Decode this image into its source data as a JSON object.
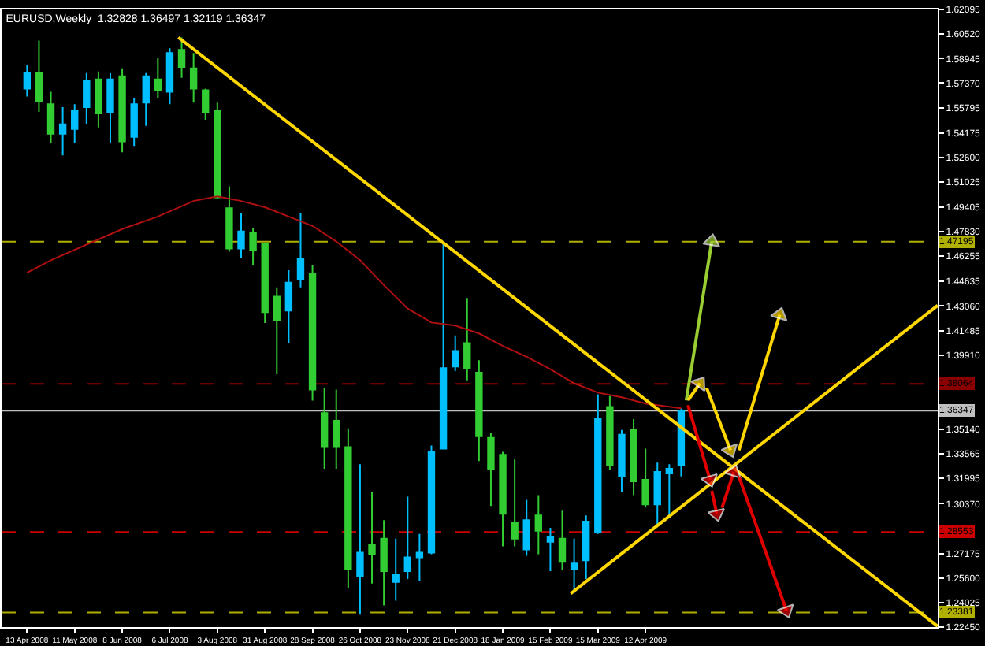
{
  "chart_data": {
    "type": "candlestick",
    "title": "EURUSD,Weekly  1.32828 1.36497 1.32119 1.36347",
    "x": [
      "2008-04-13",
      "2008-04-20",
      "2008-04-27",
      "2008-05-04",
      "2008-05-11",
      "2008-05-18",
      "2008-05-25",
      "2008-06-01",
      "2008-06-08",
      "2008-06-15",
      "2008-06-22",
      "2008-06-29",
      "2008-07-06",
      "2008-07-13",
      "2008-07-20",
      "2008-07-27",
      "2008-08-03",
      "2008-08-10",
      "2008-08-17",
      "2008-08-24",
      "2008-08-31",
      "2008-09-07",
      "2008-09-14",
      "2008-09-21",
      "2008-09-28",
      "2008-10-05",
      "2008-10-12",
      "2008-10-19",
      "2008-10-26",
      "2008-11-02",
      "2008-11-09",
      "2008-11-16",
      "2008-11-23",
      "2008-11-30",
      "2008-12-07",
      "2008-12-14",
      "2008-12-21",
      "2008-12-28",
      "2009-01-04",
      "2009-01-11",
      "2009-01-18",
      "2009-01-25",
      "2009-02-01",
      "2009-02-08",
      "2009-02-15",
      "2009-02-22",
      "2009-03-01",
      "2009-03-08",
      "2009-03-15",
      "2009-03-22",
      "2009-03-29",
      "2009-04-05",
      "2009-04-12",
      "2009-04-19",
      "2009-04-26",
      "2009-05-03"
    ],
    "ohlc": [
      [
        1.5701,
        1.5851,
        1.5651,
        1.5801
      ],
      [
        1.5801,
        1.601,
        1.5552,
        1.5621
      ],
      [
        1.5602,
        1.5681,
        1.5353,
        1.5412
      ],
      [
        1.5412,
        1.5582,
        1.5273,
        1.5472
      ],
      [
        1.5442,
        1.5602,
        1.5353,
        1.5562
      ],
      [
        1.5582,
        1.5801,
        1.5472,
        1.5751
      ],
      [
        1.5761,
        1.5811,
        1.5452,
        1.5542
      ],
      [
        1.5552,
        1.5801,
        1.5353,
        1.5761
      ],
      [
        1.5781,
        1.5831,
        1.5293,
        1.5362
      ],
      [
        1.5392,
        1.5641,
        1.5333,
        1.5602
      ],
      [
        1.5611,
        1.5801,
        1.5462,
        1.5781
      ],
      [
        1.5761,
        1.59,
        1.5641,
        1.5691
      ],
      [
        1.5681,
        1.596,
        1.5602,
        1.593
      ],
      [
        1.595,
        1.603,
        1.5771,
        1.5841
      ],
      [
        1.5831,
        1.593,
        1.5611,
        1.5701
      ],
      [
        1.5691,
        1.5701,
        1.5502,
        1.5552
      ],
      [
        1.5562,
        1.5611,
        1.4994,
        1.5004
      ],
      [
        1.4934,
        1.5074,
        1.4655,
        1.4675
      ],
      [
        1.4675,
        1.4904,
        1.4615,
        1.4785
      ],
      [
        1.4775,
        1.4805,
        1.4566,
        1.4665
      ],
      [
        1.4705,
        1.4705,
        1.4197,
        1.4267
      ],
      [
        1.4366,
        1.4426,
        1.3868,
        1.4217
      ],
      [
        1.4277,
        1.4536,
        1.4068,
        1.4456
      ],
      [
        1.4476,
        1.4904,
        1.4426,
        1.4606
      ],
      [
        1.4516,
        1.4566,
        1.3699,
        1.3769
      ],
      [
        1.3619,
        1.3779,
        1.3261,
        1.34
      ],
      [
        1.357,
        1.3769,
        1.3261,
        1.34
      ],
      [
        1.34,
        1.352,
        1.2494,
        1.2614
      ],
      [
        1.2574,
        1.3291,
        1.2325,
        1.2723
      ],
      [
        1.2773,
        1.3112,
        1.2524,
        1.2713
      ],
      [
        1.2813,
        1.2932,
        1.2384,
        1.2604
      ],
      [
        1.2534,
        1.2813,
        1.2414,
        1.2584
      ],
      [
        1.2604,
        1.3082,
        1.2554,
        1.2693
      ],
      [
        1.2693,
        1.2843,
        1.2544,
        1.2723
      ],
      [
        1.2723,
        1.341,
        1.2713,
        1.337
      ],
      [
        1.339,
        1.4705,
        1.339,
        1.3908
      ],
      [
        1.3918,
        1.4117,
        1.3888,
        1.4018
      ],
      [
        1.4068,
        1.4357,
        1.3829,
        1.3908
      ],
      [
        1.3878,
        1.3958,
        1.3311,
        1.347
      ],
      [
        1.346,
        1.349,
        1.3022,
        1.3261
      ],
      [
        1.3351,
        1.337,
        1.2763,
        1.2972
      ],
      [
        1.2912,
        1.3321,
        1.2763,
        1.2813
      ],
      [
        1.2743,
        1.3062,
        1.2703,
        1.2932
      ],
      [
        1.2962,
        1.3092,
        1.2713,
        1.2863
      ],
      [
        1.2793,
        1.2882,
        1.2604,
        1.2823
      ],
      [
        1.2813,
        1.2992,
        1.2614,
        1.2663
      ],
      [
        1.2614,
        1.2813,
        1.2464,
        1.2653
      ],
      [
        1.2673,
        1.2962,
        1.2554,
        1.2922
      ],
      [
        1.2853,
        1.3739,
        1.2843,
        1.358
      ],
      [
        1.3659,
        1.3729,
        1.3251,
        1.3281
      ],
      [
        1.3211,
        1.351,
        1.3112,
        1.348
      ],
      [
        1.351,
        1.358,
        1.3092,
        1.3181
      ],
      [
        1.3191,
        1.339,
        1.3012,
        1.3032
      ],
      [
        1.3032,
        1.3301,
        1.2892,
        1.3241
      ],
      [
        1.3231,
        1.3291,
        1.2962,
        1.3261
      ],
      [
        1.32828,
        1.36497,
        1.32119,
        1.36347
      ]
    ],
    "series": [
      {
        "type": "line",
        "color": "#b01010",
        "x": [
          "2008-04-13",
          "2008-04-27",
          "2008-05-18",
          "2008-06-08",
          "2008-06-29",
          "2008-07-20",
          "2008-08-03",
          "2008-08-17",
          "2008-08-31",
          "2008-09-14",
          "2008-09-28",
          "2008-10-12",
          "2008-10-26",
          "2008-11-09",
          "2008-11-23",
          "2008-12-07",
          "2008-12-21",
          "2009-01-04",
          "2009-01-18",
          "2009-02-01",
          "2009-02-15",
          "2009-03-01",
          "2009-03-15",
          "2009-03-29",
          "2009-04-12",
          "2009-05-03"
        ],
        "values": [
          1.452,
          1.46,
          1.47,
          1.48,
          1.488,
          1.498,
          1.501,
          1.498,
          1.494,
          1.488,
          1.482,
          1.472,
          1.46,
          1.444,
          1.429,
          1.42,
          1.418,
          1.413,
          1.405,
          1.398,
          1.39,
          1.381,
          1.375,
          1.372,
          1.368,
          1.365
        ]
      },
      {
        "type": "line",
        "color": "#ffd700",
        "x": [
          "2008-07-11",
          "2009-10-01"
        ],
        "values": [
          1.603,
          1.225
        ]
      },
      {
        "type": "line",
        "color": "#ffd700",
        "x": [
          "2009-02-27",
          "2009-10-01"
        ],
        "values": [
          1.246,
          1.431
        ]
      },
      {
        "type": "line",
        "color": "#9acd32",
        "marker": "triangle",
        "x": [
          "2009-05-06",
          "2009-05-21"
        ],
        "values": [
          1.37,
          1.472
        ]
      },
      {
        "type": "line",
        "color": "#ffd700",
        "marker": "triangle",
        "x": [
          "2009-05-07",
          "2009-05-14"
        ],
        "values": [
          1.37,
          1.381
        ]
      },
      {
        "type": "line",
        "color": "#ffd700",
        "marker": "triangle",
        "x": [
          "2009-05-18",
          "2009-06-01"
        ],
        "values": [
          1.378,
          1.338
        ]
      },
      {
        "type": "line",
        "color": "#ffd700",
        "marker": "triangle",
        "x": [
          "2009-06-06",
          "2009-06-30"
        ],
        "values": [
          1.338,
          1.425
        ]
      },
      {
        "type": "line",
        "color": "#e00000",
        "marker": "triangle",
        "x": [
          "2009-05-07",
          "2009-05-20"
        ],
        "values": [
          1.367,
          1.319
        ]
      },
      {
        "type": "line",
        "color": "#e00000",
        "marker": "triangle",
        "x": [
          "2009-05-21",
          "2009-05-24"
        ],
        "values": [
          1.312,
          1.297
        ]
      },
      {
        "type": "line",
        "color": "#e00000",
        "marker": "triangle",
        "x": [
          "2009-05-27",
          "2009-06-03"
        ],
        "values": [
          1.301,
          1.324
        ]
      },
      {
        "type": "line",
        "color": "#e00000",
        "marker": "triangle",
        "x": [
          "2009-06-06",
          "2009-07-04"
        ],
        "values": [
          1.321,
          1.235
        ]
      }
    ],
    "ref_lines": [
      {
        "axis": "y",
        "value": 1.47195,
        "label": "1.47195",
        "color": "#b0b000",
        "line_style": "dashed"
      },
      {
        "axis": "y",
        "value": 1.38064,
        "label": "1.38064",
        "color": "#8b0000",
        "line_style": "dashed"
      },
      {
        "axis": "y",
        "value": 1.36347,
        "label": "1.36347",
        "color": "#c0c0c0",
        "line_style": "solid"
      },
      {
        "axis": "y",
        "value": 1.28553,
        "label": "1.28553",
        "color": "#cc0000",
        "line_style": "dashed"
      },
      {
        "axis": "y",
        "value": 1.23381,
        "label": "1.23381",
        "color": "#b0b000",
        "line_style": "dashed"
      }
    ],
    "xlim": [
      "2008-03-29",
      "2009-10-01"
    ],
    "xticks": [
      {
        "value": "2008-04-13",
        "label": "13 Apr 2008"
      },
      {
        "value": "2008-05-11",
        "label": "11 May 2008"
      },
      {
        "value": "2008-06-08",
        "label": "8 Jun 2008"
      },
      {
        "value": "2008-07-06",
        "label": "6 Jul 2008"
      },
      {
        "value": "2008-08-03",
        "label": "3 Aug 2008"
      },
      {
        "value": "2008-08-31",
        "label": "31 Aug 2008"
      },
      {
        "value": "2008-09-28",
        "label": "28 Sep 2008"
      },
      {
        "value": "2008-10-26",
        "label": "26 Oct 2008"
      },
      {
        "value": "2008-11-23",
        "label": "23 Nov 2008"
      },
      {
        "value": "2008-12-21",
        "label": "21 Dec 2008"
      },
      {
        "value": "2009-01-18",
        "label": "18 Jan 2009"
      },
      {
        "value": "2009-02-15",
        "label": "15 Feb 2009"
      },
      {
        "value": "2009-03-15",
        "label": "15 Mar 2009"
      },
      {
        "value": "2009-04-12",
        "label": "12 Apr 2009"
      }
    ],
    "ylim": [
      1.2245,
      1.62095
    ],
    "yticks": [
      {
        "value": 1.62095,
        "label": "1.62095"
      },
      {
        "value": 1.6052,
        "label": "1.60520"
      },
      {
        "value": 1.58945,
        "label": "1.58945"
      },
      {
        "value": 1.5737,
        "label": "1.57370"
      },
      {
        "value": 1.55795,
        "label": "1.55795"
      },
      {
        "value": 1.54175,
        "label": "1.54175"
      },
      {
        "value": 1.526,
        "label": "1.52600"
      },
      {
        "value": 1.51025,
        "label": "1.51025"
      },
      {
        "value": 1.49405,
        "label": "1.49405"
      },
      {
        "value": 1.4783,
        "label": "1.47830"
      },
      {
        "value": 1.46255,
        "label": "1.46255"
      },
      {
        "value": 1.44635,
        "label": "1.44635"
      },
      {
        "value": 1.4306,
        "label": "1.43060"
      },
      {
        "value": 1.41485,
        "label": "1.41485"
      },
      {
        "value": 1.3991,
        "label": "1.39910"
      },
      {
        "value": 1.3514,
        "label": "1.35140"
      },
      {
        "value": 1.33565,
        "label": "1.33565"
      },
      {
        "value": 1.31995,
        "label": "1.31995"
      },
      {
        "value": 1.3037,
        "label": "1.30370"
      },
      {
        "value": 1.27175,
        "label": "1.27175"
      },
      {
        "value": 1.256,
        "label": "1.25600"
      },
      {
        "value": 1.24025,
        "label": "1.24025"
      },
      {
        "value": 1.2245,
        "label": "1.22450"
      }
    ],
    "grid": false
  }
}
